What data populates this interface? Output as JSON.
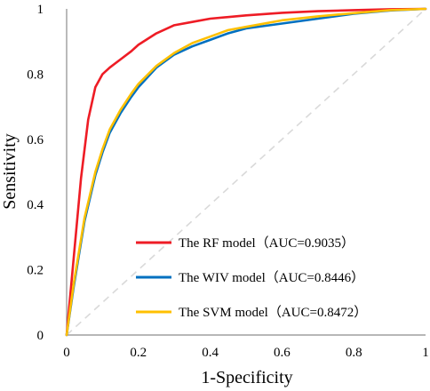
{
  "chart_data": {
    "type": "line",
    "title": "",
    "xlabel": "1-Specificity",
    "ylabel": "Sensitivity",
    "xlim": [
      0,
      1
    ],
    "ylim": [
      0,
      1
    ],
    "x_ticks": [
      "0",
      "0.2",
      "0.4",
      "0.6",
      "0.8",
      "1"
    ],
    "y_ticks": [
      "0",
      "0.2",
      "0.4",
      "0.6",
      "0.8",
      "1"
    ],
    "grid": false,
    "legend_position": "bottom-right",
    "reference_line": {
      "from": [
        0,
        0
      ],
      "to": [
        1,
        1
      ],
      "style": "dashed",
      "color": "#d9d9d9"
    },
    "series": [
      {
        "name": "The RF model",
        "legend_auc": "（AUC=0.9035）",
        "color": "#ee1c25",
        "x": [
          0,
          0.02,
          0.04,
          0.06,
          0.08,
          0.1,
          0.12,
          0.15,
          0.18,
          0.2,
          0.25,
          0.3,
          0.35,
          0.4,
          0.5,
          0.6,
          0.7,
          0.8,
          0.9,
          1.0
        ],
        "y": [
          0,
          0.24,
          0.48,
          0.66,
          0.76,
          0.8,
          0.82,
          0.845,
          0.87,
          0.89,
          0.925,
          0.95,
          0.96,
          0.97,
          0.98,
          0.988,
          0.993,
          0.996,
          0.999,
          1.0
        ]
      },
      {
        "name": "The WIV model",
        "legend_auc": "（AUC=0.8446）",
        "color": "#0070c0",
        "x": [
          0,
          0.02,
          0.05,
          0.08,
          0.1,
          0.12,
          0.15,
          0.18,
          0.2,
          0.25,
          0.3,
          0.35,
          0.4,
          0.45,
          0.5,
          0.6,
          0.7,
          0.8,
          0.9,
          1.0
        ],
        "y": [
          0,
          0.15,
          0.35,
          0.49,
          0.56,
          0.62,
          0.68,
          0.73,
          0.76,
          0.82,
          0.86,
          0.885,
          0.905,
          0.925,
          0.94,
          0.955,
          0.97,
          0.985,
          0.995,
          1.0
        ]
      },
      {
        "name": "The SVM model",
        "legend_auc": "（AUC=0.8472）",
        "color": "#ffc000",
        "x": [
          0,
          0.02,
          0.05,
          0.08,
          0.1,
          0.12,
          0.15,
          0.18,
          0.2,
          0.25,
          0.3,
          0.35,
          0.4,
          0.45,
          0.5,
          0.6,
          0.7,
          0.8,
          0.9,
          1.0
        ],
        "y": [
          0,
          0.16,
          0.36,
          0.5,
          0.57,
          0.63,
          0.69,
          0.74,
          0.77,
          0.825,
          0.865,
          0.895,
          0.915,
          0.935,
          0.945,
          0.965,
          0.977,
          0.987,
          0.996,
          1.0
        ]
      }
    ]
  }
}
